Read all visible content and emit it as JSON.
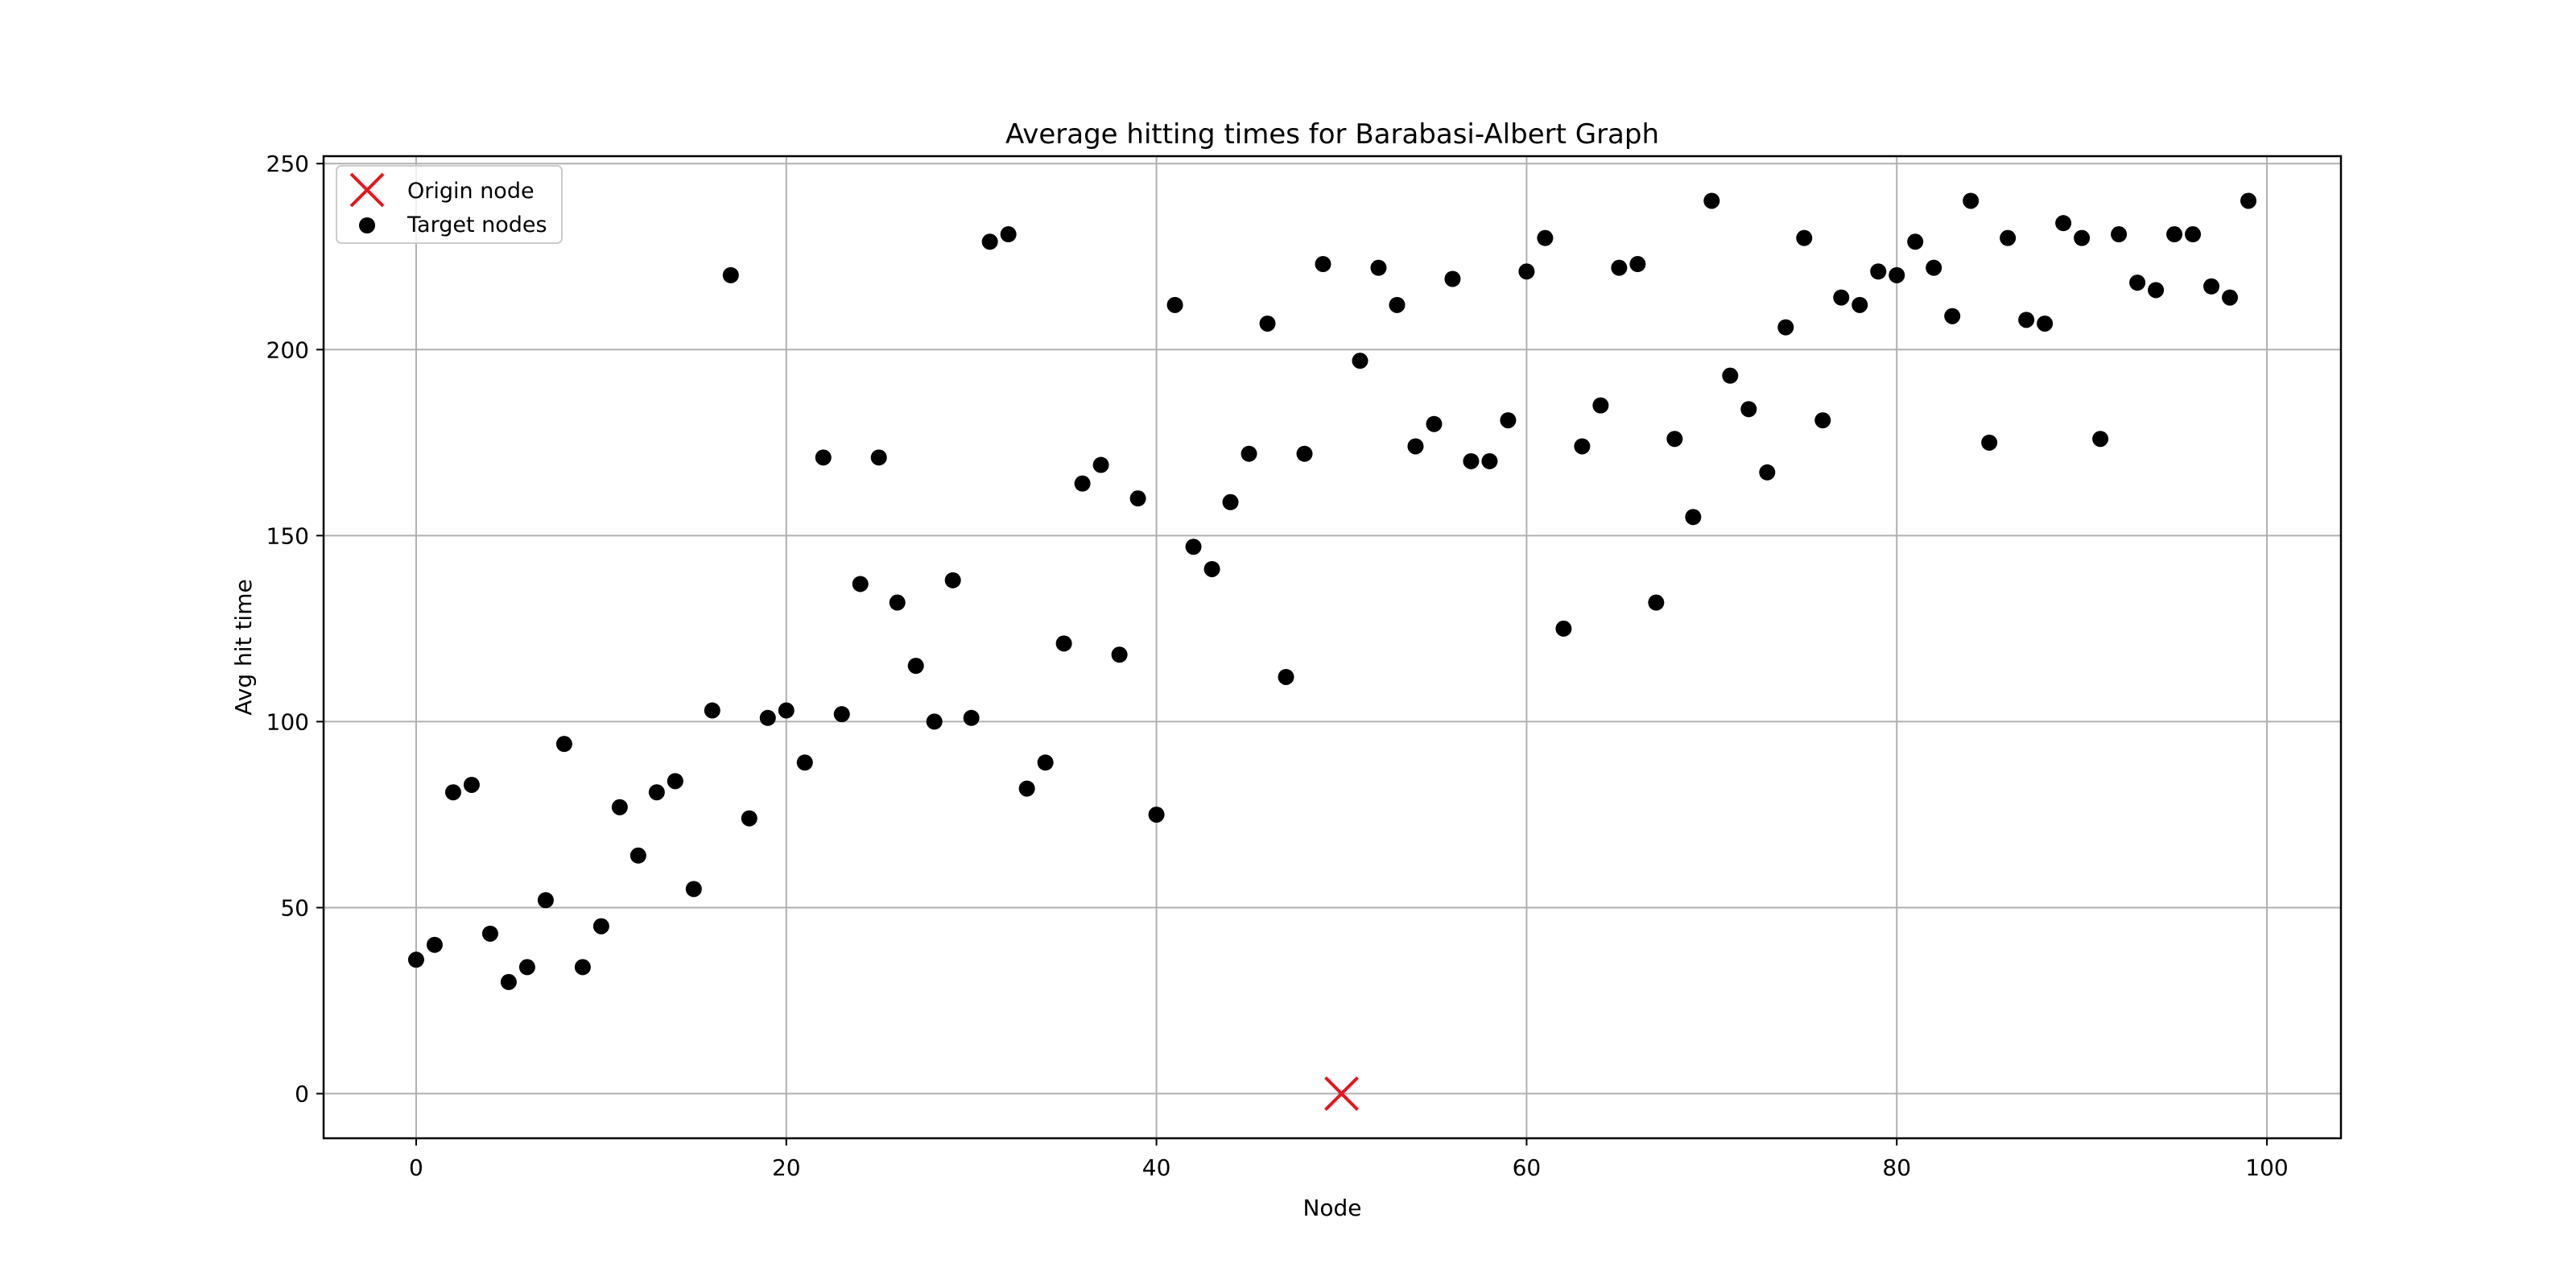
{
  "chart_data": {
    "type": "scatter",
    "title": "Average hitting times for Barabasi-Albert Graph",
    "xlabel": "Node",
    "ylabel": "Avg hit time",
    "xlim": [
      -5,
      104
    ],
    "ylim": [
      -12,
      252
    ],
    "xticks": [
      0,
      20,
      40,
      60,
      80,
      100
    ],
    "yticks": [
      0,
      50,
      100,
      150,
      200,
      250
    ],
    "grid": true,
    "legend_position": "top-left",
    "legend": [
      {
        "label": "Origin node",
        "marker": "x",
        "color": "#e8141d"
      },
      {
        "label": "Target nodes",
        "marker": "circle",
        "color": "#000000"
      }
    ],
    "series": [
      {
        "name": "Origin node",
        "marker": "x",
        "color": "#e8141d",
        "points": [
          [
            50,
            0
          ]
        ]
      },
      {
        "name": "Target nodes",
        "marker": "circle",
        "color": "#000000",
        "points": [
          [
            0,
            36
          ],
          [
            1,
            40
          ],
          [
            2,
            81
          ],
          [
            3,
            83
          ],
          [
            4,
            43
          ],
          [
            5,
            30
          ],
          [
            6,
            34
          ],
          [
            7,
            52
          ],
          [
            8,
            94
          ],
          [
            9,
            34
          ],
          [
            10,
            45
          ],
          [
            11,
            77
          ],
          [
            12,
            64
          ],
          [
            13,
            81
          ],
          [
            14,
            84
          ],
          [
            15,
            55
          ],
          [
            16,
            103
          ],
          [
            17,
            220
          ],
          [
            18,
            74
          ],
          [
            19,
            101
          ],
          [
            20,
            103
          ],
          [
            21,
            89
          ],
          [
            22,
            171
          ],
          [
            23,
            102
          ],
          [
            24,
            137
          ],
          [
            25,
            171
          ],
          [
            26,
            132
          ],
          [
            27,
            115
          ],
          [
            28,
            100
          ],
          [
            29,
            138
          ],
          [
            30,
            101
          ],
          [
            31,
            229
          ],
          [
            32,
            231
          ],
          [
            33,
            82
          ],
          [
            34,
            89
          ],
          [
            35,
            121
          ],
          [
            36,
            164
          ],
          [
            37,
            169
          ],
          [
            38,
            118
          ],
          [
            39,
            160
          ],
          [
            40,
            75
          ],
          [
            41,
            212
          ],
          [
            42,
            147
          ],
          [
            43,
            141
          ],
          [
            44,
            159
          ],
          [
            45,
            172
          ],
          [
            46,
            207
          ],
          [
            47,
            112
          ],
          [
            48,
            172
          ],
          [
            49,
            223
          ],
          [
            51,
            197
          ],
          [
            52,
            222
          ],
          [
            53,
            212
          ],
          [
            54,
            174
          ],
          [
            55,
            180
          ],
          [
            56,
            219
          ],
          [
            57,
            170
          ],
          [
            58,
            170
          ],
          [
            59,
            181
          ],
          [
            60,
            221
          ],
          [
            61,
            230
          ],
          [
            62,
            125
          ],
          [
            63,
            174
          ],
          [
            64,
            185
          ],
          [
            65,
            222
          ],
          [
            66,
            223
          ],
          [
            67,
            132
          ],
          [
            68,
            176
          ],
          [
            69,
            155
          ],
          [
            70,
            240
          ],
          [
            71,
            193
          ],
          [
            72,
            184
          ],
          [
            73,
            167
          ],
          [
            74,
            206
          ],
          [
            75,
            230
          ],
          [
            76,
            181
          ],
          [
            77,
            214
          ],
          [
            78,
            212
          ],
          [
            79,
            221
          ],
          [
            80,
            220
          ],
          [
            81,
            229
          ],
          [
            82,
            222
          ],
          [
            83,
            209
          ],
          [
            84,
            240
          ],
          [
            85,
            175
          ],
          [
            86,
            230
          ],
          [
            87,
            208
          ],
          [
            88,
            207
          ],
          [
            89,
            234
          ],
          [
            90,
            230
          ],
          [
            91,
            176
          ],
          [
            92,
            231
          ],
          [
            93,
            218
          ],
          [
            94,
            216
          ],
          [
            95,
            231
          ],
          [
            96,
            231
          ],
          [
            97,
            217
          ],
          [
            98,
            214
          ],
          [
            99,
            240
          ]
        ]
      }
    ]
  }
}
